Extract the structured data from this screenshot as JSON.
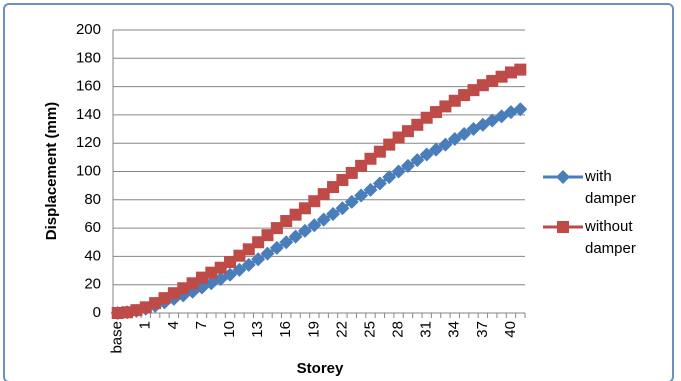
{
  "chart_data": {
    "type": "line",
    "y_label": "Displacement (mm)",
    "x_label": "Storey",
    "categories": [
      "base",
      null,
      null,
      "1",
      null,
      null,
      "4",
      null,
      null,
      "7",
      null,
      null,
      "10",
      null,
      null,
      "13",
      null,
      null,
      "16",
      null,
      null,
      "19",
      null,
      null,
      "22",
      null,
      null,
      "25",
      null,
      null,
      "28",
      null,
      null,
      "31",
      null,
      null,
      "34",
      null,
      null,
      "37",
      null,
      null,
      "40",
      null
    ],
    "series": [
      {
        "name": "with damper",
        "color": "#4a7ebb",
        "marker": "diamond",
        "values": [
          0,
          0.5,
          1.5,
          3,
          5,
          7.5,
          10,
          12.5,
          15,
          18,
          21,
          24,
          27,
          30.5,
          34,
          38,
          42,
          46,
          50,
          54,
          58,
          62,
          66,
          70,
          74,
          78.5,
          83,
          87,
          91.5,
          96,
          100,
          104,
          108,
          112,
          115.5,
          119,
          123,
          126.5,
          130,
          133,
          136,
          139,
          142,
          144
        ]
      },
      {
        "name": "without damper",
        "color": "#be4b48",
        "marker": "square",
        "values": [
          0,
          0.5,
          2,
          4,
          7,
          10.5,
          14,
          17.5,
          21,
          25,
          28.5,
          32,
          36,
          40.5,
          45,
          50,
          55,
          60,
          65,
          69.5,
          74,
          79,
          84,
          89,
          94,
          99,
          104,
          109,
          114,
          119,
          124,
          128.5,
          133,
          138,
          142,
          146,
          150,
          154,
          157.5,
          161,
          164,
          167,
          170,
          172
        ]
      }
    ],
    "ylim": [
      0,
      200
    ],
    "yticks": [
      0,
      20,
      40,
      60,
      80,
      100,
      120,
      140,
      160,
      180,
      200
    ],
    "grid": true,
    "legend": "right"
  }
}
